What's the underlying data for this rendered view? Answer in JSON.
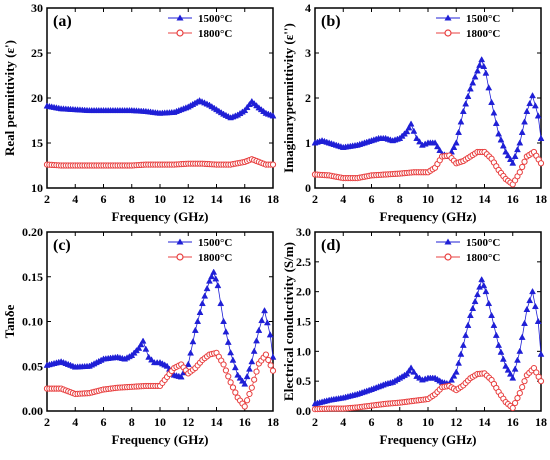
{
  "figure": {
    "colors": {
      "blue": "#1f1fd6",
      "red": "#e84040",
      "frame": "#000000"
    },
    "xlabel": "Frequency (GHz)",
    "xticks": [
      "2",
      "4",
      "6",
      "8",
      "10",
      "12",
      "14",
      "16",
      "18"
    ]
  },
  "chart_data": [
    {
      "type": "line",
      "panel_label": "(a)",
      "ylabel": "Real  permittivity (ε')",
      "xlabel": "Frequency (GHz)",
      "xlim": [
        2,
        18
      ],
      "ylim": [
        10,
        30
      ],
      "yticks": [
        "10",
        "15",
        "20",
        "25",
        "30"
      ],
      "legend": "top-right",
      "series": [
        {
          "name": "1500°C",
          "color": "#1f1fd6",
          "marker": "triangle",
          "x": [
            2,
            3,
            4,
            5,
            6,
            7,
            8,
            9,
            10,
            11,
            12,
            12.8,
            13.5,
            14,
            14.5,
            15,
            15.5,
            16,
            16.5,
            17,
            17.5,
            18
          ],
          "y": [
            19.1,
            18.8,
            18.7,
            18.6,
            18.6,
            18.6,
            18.6,
            18.5,
            18.3,
            18.4,
            19.0,
            19.7,
            19.2,
            18.7,
            18.2,
            17.8,
            18.1,
            18.6,
            19.6,
            18.9,
            18.3,
            18.0
          ]
        },
        {
          "name": "1800°C",
          "color": "#e84040",
          "marker": "circle",
          "x": [
            2,
            3,
            4,
            5,
            6,
            7,
            8,
            9,
            10,
            11,
            12,
            13,
            14,
            15,
            16,
            16.5,
            17,
            17.5,
            18
          ],
          "y": [
            12.6,
            12.5,
            12.5,
            12.5,
            12.5,
            12.5,
            12.5,
            12.6,
            12.6,
            12.6,
            12.7,
            12.7,
            12.6,
            12.6,
            12.9,
            13.2,
            12.9,
            12.6,
            12.6
          ]
        }
      ]
    },
    {
      "type": "line",
      "panel_label": "(b)",
      "ylabel": "Imaginarypermittivity (ε'')",
      "xlabel": "Frequency (GHz)",
      "xlim": [
        2,
        18
      ],
      "ylim": [
        0,
        4
      ],
      "yticks": [
        "0",
        "1",
        "2",
        "3",
        "4"
      ],
      "legend": "top-right",
      "series": [
        {
          "name": "1500°C",
          "color": "#1f1fd6",
          "marker": "triangle",
          "x": [
            2,
            2.5,
            3,
            4,
            5,
            6,
            6.5,
            7,
            7.5,
            8,
            8.5,
            8.8,
            9.2,
            9.6,
            10,
            10.5,
            11,
            11.5,
            12,
            12.5,
            13,
            13.5,
            13.8,
            14.1,
            14.5,
            15,
            15.5,
            16,
            16.5,
            17,
            17.4,
            17.8,
            18
          ],
          "y": [
            1.0,
            1.05,
            1.0,
            0.9,
            0.95,
            1.05,
            1.1,
            1.1,
            1.05,
            1.1,
            1.25,
            1.42,
            1.1,
            0.95,
            1.0,
            1.0,
            0.75,
            0.7,
            1.0,
            1.7,
            2.2,
            2.6,
            2.85,
            2.55,
            1.9,
            1.2,
            0.8,
            0.55,
            1.0,
            1.7,
            2.05,
            1.6,
            1.1
          ]
        },
        {
          "name": "1800°C",
          "color": "#e84040",
          "marker": "circle",
          "x": [
            2,
            3,
            4,
            5,
            6,
            7,
            8,
            9,
            10,
            10.5,
            11,
            11.5,
            12,
            12.5,
            13,
            13.5,
            14,
            14.5,
            15,
            15.5,
            16,
            16.5,
            17,
            17.5,
            18
          ],
          "y": [
            0.3,
            0.28,
            0.22,
            0.22,
            0.28,
            0.3,
            0.32,
            0.35,
            0.35,
            0.45,
            0.7,
            0.72,
            0.55,
            0.6,
            0.7,
            0.8,
            0.8,
            0.65,
            0.4,
            0.2,
            0.08,
            0.35,
            0.7,
            0.8,
            0.55
          ]
        }
      ]
    },
    {
      "type": "line",
      "panel_label": "(c)",
      "ylabel": "Tanδe",
      "xlabel": "Frequency (GHz)",
      "xlim": [
        2,
        18
      ],
      "ylim": [
        0,
        0.2
      ],
      "yticks": [
        "0.00",
        "0.05",
        "0.10",
        "0.15",
        "0.20"
      ],
      "legend": "top-right",
      "series": [
        {
          "name": "1500°C",
          "color": "#1f1fd6",
          "marker": "triangle",
          "x": [
            2,
            3,
            4,
            5,
            6,
            7,
            7.5,
            8,
            8.5,
            8.8,
            9.2,
            9.6,
            10,
            10.5,
            11,
            11.5,
            12,
            12.5,
            13,
            13.5,
            13.8,
            14.1,
            14.5,
            15,
            15.5,
            16,
            16.5,
            17,
            17.4,
            17.8,
            18
          ],
          "y": [
            0.051,
            0.055,
            0.049,
            0.05,
            0.058,
            0.06,
            0.058,
            0.062,
            0.07,
            0.078,
            0.06,
            0.054,
            0.054,
            0.05,
            0.04,
            0.038,
            0.052,
            0.09,
            0.12,
            0.145,
            0.155,
            0.14,
            0.1,
            0.065,
            0.04,
            0.03,
            0.055,
            0.09,
            0.112,
            0.085,
            0.06
          ]
        },
        {
          "name": "1800°C",
          "color": "#e84040",
          "marker": "circle",
          "x": [
            2,
            3,
            4,
            5,
            6,
            7,
            8,
            9,
            10,
            10.5,
            11,
            11.5,
            12,
            12.5,
            13,
            13.5,
            14,
            14.5,
            15,
            15.5,
            16,
            16.5,
            17,
            17.5,
            18
          ],
          "y": [
            0.025,
            0.025,
            0.019,
            0.02,
            0.024,
            0.026,
            0.027,
            0.028,
            0.028,
            0.038,
            0.048,
            0.052,
            0.042,
            0.048,
            0.057,
            0.063,
            0.065,
            0.052,
            0.032,
            0.015,
            0.005,
            0.026,
            0.053,
            0.063,
            0.045
          ]
        }
      ]
    },
    {
      "type": "line",
      "panel_label": "(d)",
      "ylabel": "Electrical conductivity (S/m)",
      "xlabel": "Frequency (GHz)",
      "xlim": [
        2,
        18
      ],
      "ylim": [
        0,
        3.0
      ],
      "yticks": [
        "0.0",
        "0.5",
        "1.0",
        "1.5",
        "2.0",
        "2.5",
        "3.0"
      ],
      "legend": "top-right",
      "series": [
        {
          "name": "1500°C",
          "color": "#1f1fd6",
          "marker": "triangle",
          "x": [
            2,
            3,
            4,
            5,
            6,
            7,
            7.5,
            8,
            8.5,
            8.8,
            9.2,
            9.6,
            10,
            10.5,
            11,
            11.5,
            12,
            12.5,
            13,
            13.5,
            13.8,
            14.1,
            14.5,
            15,
            15.5,
            16,
            16.5,
            17,
            17.4,
            17.8,
            18
          ],
          "y": [
            0.12,
            0.18,
            0.22,
            0.28,
            0.36,
            0.45,
            0.48,
            0.55,
            0.62,
            0.72,
            0.58,
            0.52,
            0.55,
            0.55,
            0.48,
            0.45,
            0.65,
            1.1,
            1.6,
            1.95,
            2.2,
            2.0,
            1.6,
            1.1,
            0.75,
            0.55,
            1.0,
            1.7,
            2.0,
            1.5,
            0.95
          ]
        },
        {
          "name": "1800°C",
          "color": "#e84040",
          "marker": "circle",
          "x": [
            2,
            3,
            4,
            5,
            6,
            7,
            8,
            9,
            10,
            10.5,
            11,
            11.5,
            12,
            12.5,
            13,
            13.5,
            14,
            14.5,
            15,
            15.5,
            16,
            16.5,
            17,
            17.5,
            18
          ],
          "y": [
            0.03,
            0.04,
            0.04,
            0.06,
            0.09,
            0.12,
            0.14,
            0.17,
            0.2,
            0.28,
            0.4,
            0.42,
            0.35,
            0.43,
            0.55,
            0.62,
            0.63,
            0.52,
            0.32,
            0.15,
            0.05,
            0.3,
            0.6,
            0.72,
            0.5
          ]
        }
      ]
    }
  ]
}
